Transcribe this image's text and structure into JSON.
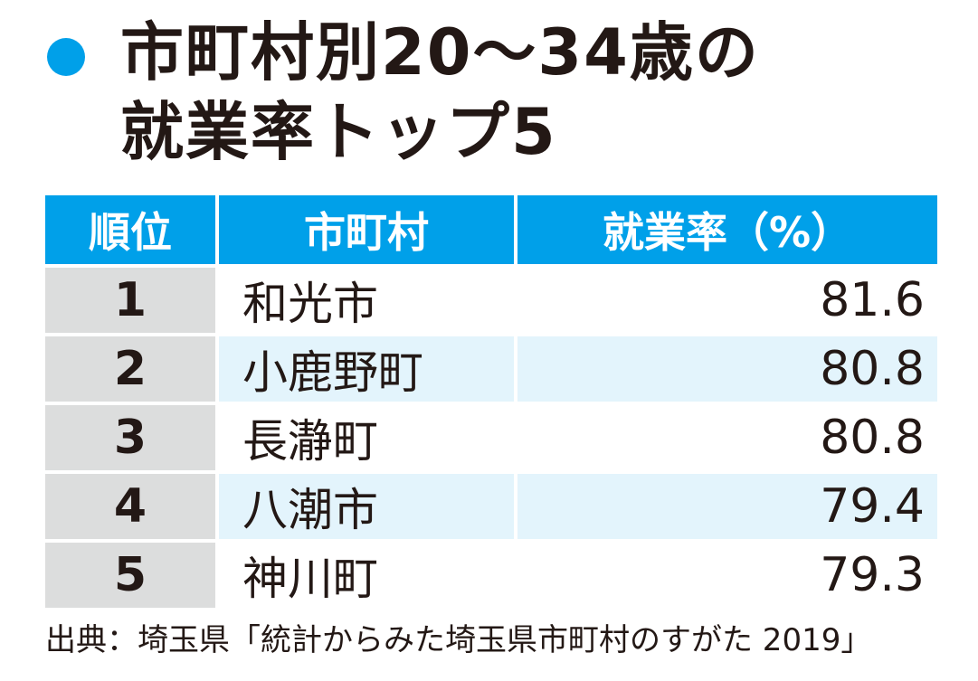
{
  "title": {
    "line1": "市町村別20～34歳の",
    "line2": "就業率トップ5",
    "dot_color": "#00a0e9"
  },
  "colors": {
    "header_bg": "#00a0e9",
    "rank_col_bg": "#dcdddd",
    "alt_row_bg": "#e3f4fc"
  },
  "chart_data": {
    "type": "table",
    "columns": [
      "順位",
      "市町村",
      "就業率（%）"
    ],
    "rows": [
      {
        "rank": "1",
        "name": "和光市",
        "rate": "81.6"
      },
      {
        "rank": "2",
        "name": "小鹿野町",
        "rate": "80.8"
      },
      {
        "rank": "3",
        "name": "長瀞町",
        "rate": "80.8"
      },
      {
        "rank": "4",
        "name": "八潮市",
        "rate": "79.4"
      },
      {
        "rank": "5",
        "name": "神川町",
        "rate": "79.3"
      }
    ]
  },
  "source": "出典：埼玉県「統計からみた埼玉県市町村のすがた 2019」"
}
